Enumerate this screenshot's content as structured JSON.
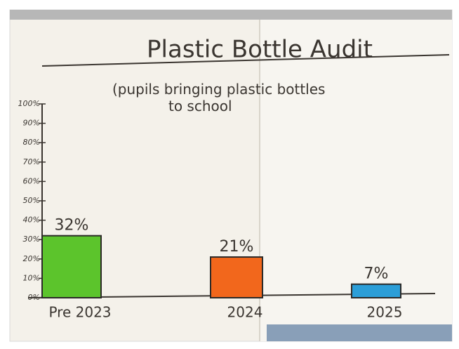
{
  "chart_data": {
    "type": "bar",
    "title": "Plastic Bottle Audit",
    "subtitle": "(pupils bringing plastic bottles to school",
    "categories": [
      "Pre 2023",
      "2024",
      "2025"
    ],
    "values": [
      32,
      21,
      7
    ],
    "value_labels": [
      "32%",
      "21%",
      "7%"
    ],
    "colors": [
      "#5cc42c",
      "#f2671c",
      "#2b9ed8"
    ],
    "ylim": [
      0,
      100
    ],
    "yticks": [
      {
        "value": 0,
        "label": "0%"
      },
      {
        "value": 10,
        "label": "10%"
      },
      {
        "value": 20,
        "label": "20%"
      },
      {
        "value": 30,
        "label": "30%"
      },
      {
        "value": 40,
        "label": "40%"
      },
      {
        "value": 50,
        "label": "50%"
      },
      {
        "value": 60,
        "label": "60%"
      },
      {
        "value": 70,
        "label": "70%"
      },
      {
        "value": 80,
        "label": "80%"
      },
      {
        "value": 90,
        "label": "90%"
      },
      {
        "value": 100,
        "label": "100%"
      }
    ]
  }
}
